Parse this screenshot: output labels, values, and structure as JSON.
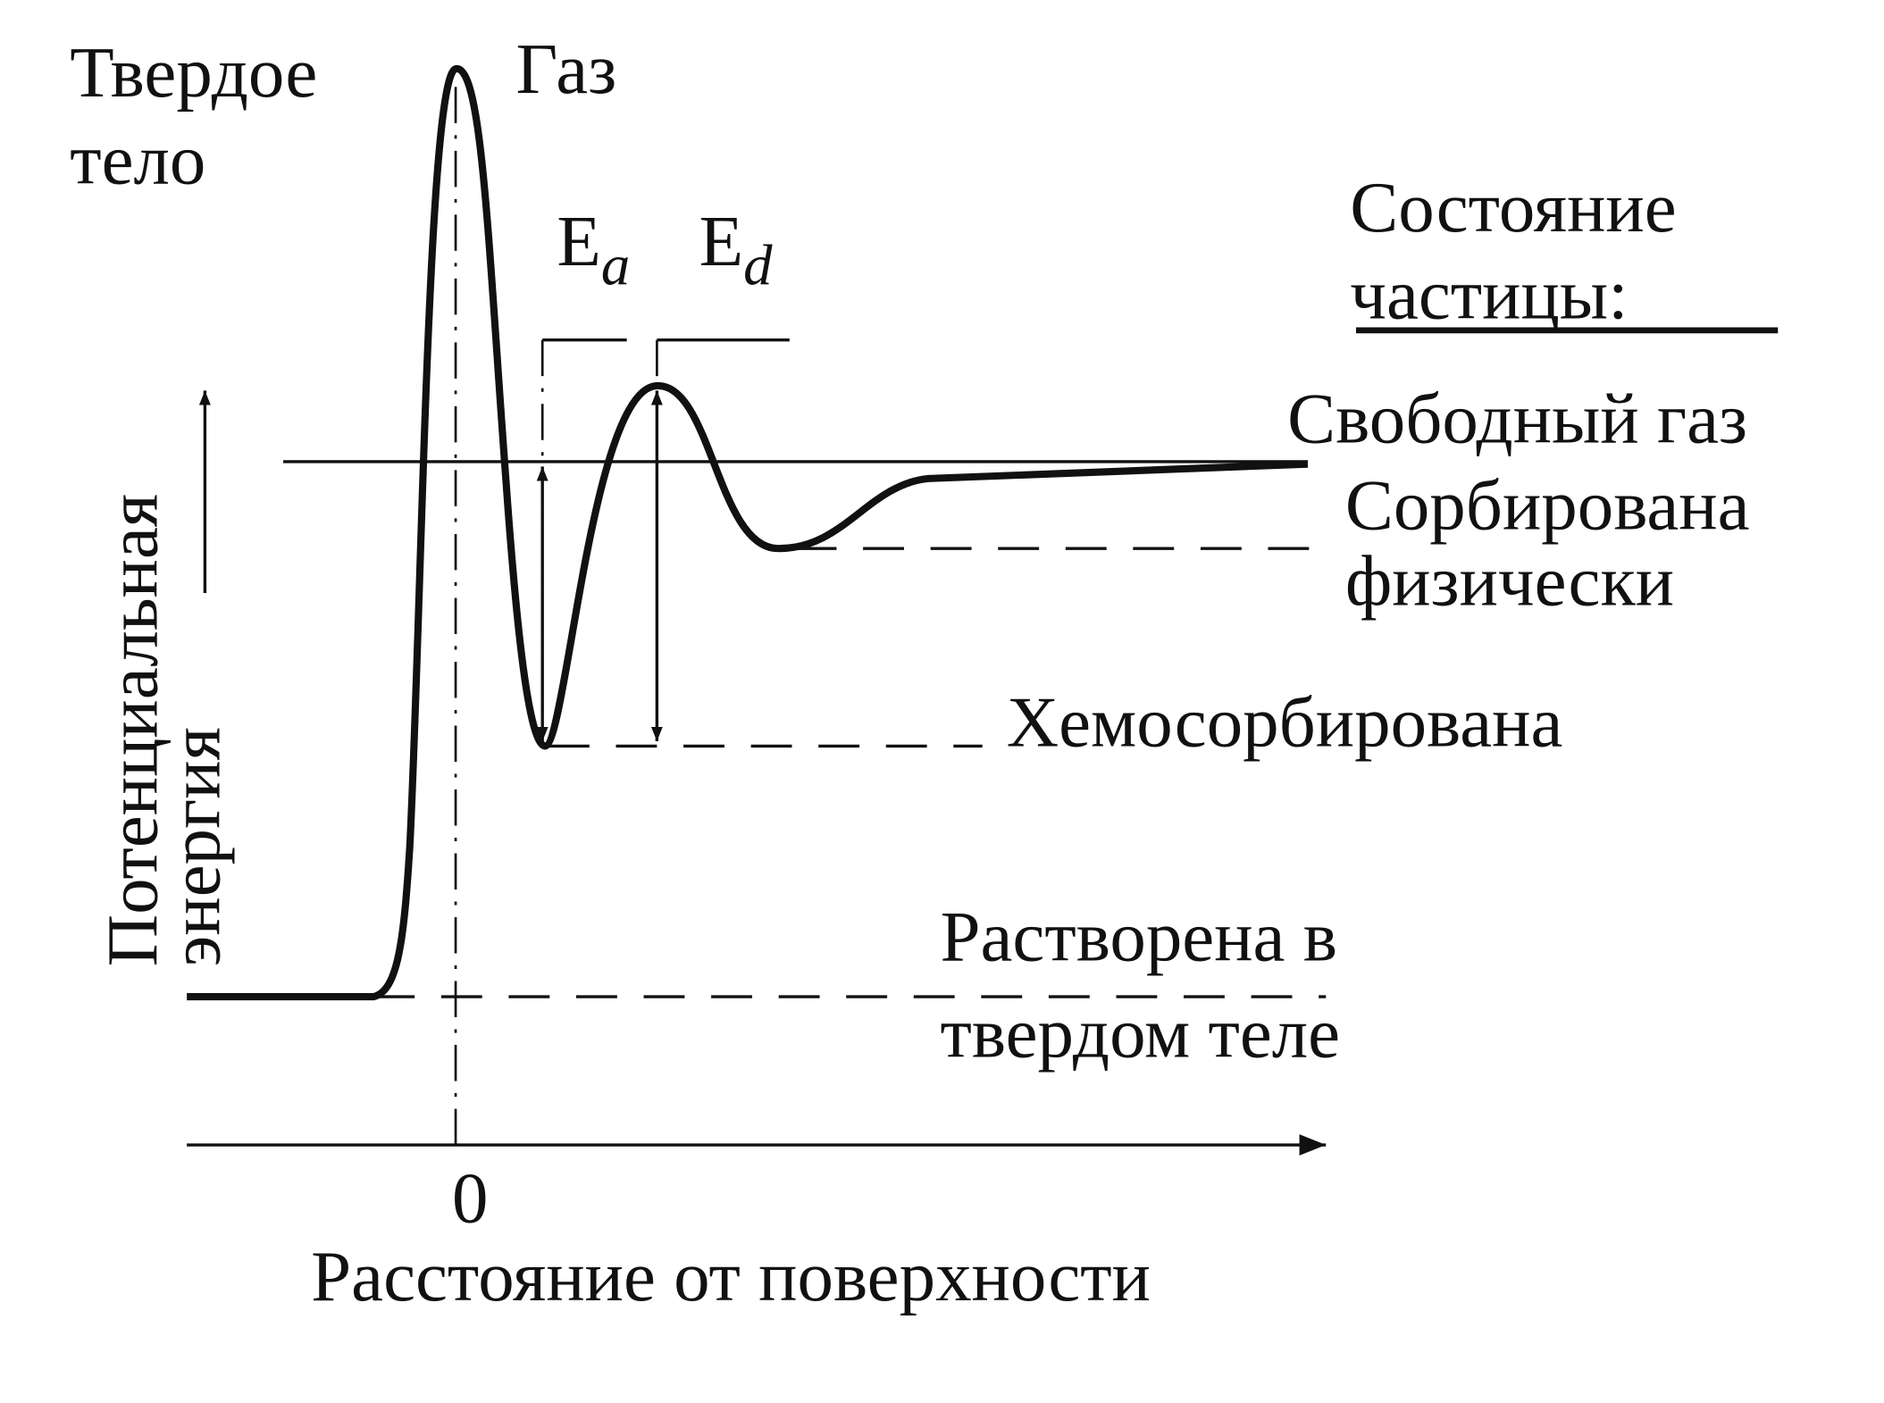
{
  "labels": {
    "solid": [
      "Твердое",
      "тело"
    ],
    "gas": "Газ",
    "ea": {
      "symbol": "E",
      "subscript": "a"
    },
    "ed": {
      "symbol": "E",
      "subscript": "d"
    },
    "state_title": [
      "Состояние",
      "частицы:"
    ],
    "free_gas": "Свободный газ",
    "physisorbed": [
      "Сорбирована",
      "физически"
    ],
    "chemisorbed": "Хемосорбирована",
    "dissolved": [
      "Растворена в",
      "твердом теле"
    ],
    "y_axis": [
      "Потенциальная",
      "энергия"
    ],
    "x_origin": "0",
    "x_axis": "Расстояние от поверхности"
  }
}
